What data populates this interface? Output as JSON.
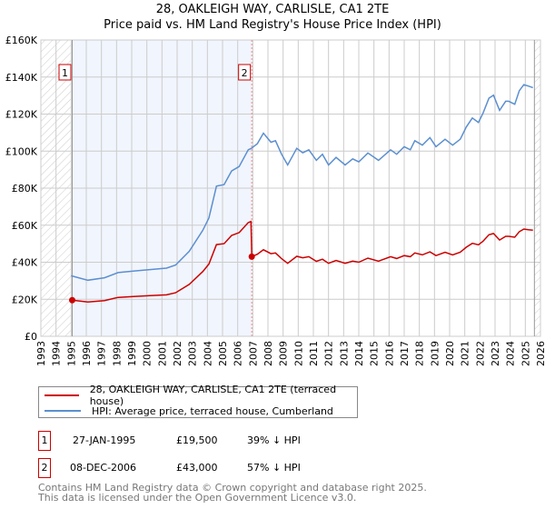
{
  "chart_data": {
    "type": "line",
    "title": "28, OAKLEIGH WAY, CARLISLE, CA1 2TE",
    "subtitle": "Price paid vs. HM Land Registry's House Price Index (HPI)",
    "xlabel": "",
    "ylabel": "",
    "xlim": [
      1993,
      2026
    ],
    "ylim": [
      0,
      160000
    ],
    "grid": true,
    "x_ticks": [
      "1993",
      "1994",
      "1995",
      "1996",
      "1997",
      "1998",
      "1999",
      "2000",
      "2001",
      "2002",
      "2003",
      "2004",
      "2005",
      "2006",
      "2007",
      "2008",
      "2009",
      "2010",
      "2011",
      "2012",
      "2013",
      "2014",
      "2015",
      "2016",
      "2017",
      "2018",
      "2019",
      "2020",
      "2021",
      "2022",
      "2023",
      "2024",
      "2025",
      "2026"
    ],
    "y_ticks": [
      {
        "value": 0,
        "label": "£0"
      },
      {
        "value": 20000,
        "label": "£20K"
      },
      {
        "value": 40000,
        "label": "£40K"
      },
      {
        "value": 60000,
        "label": "£60K"
      },
      {
        "value": 80000,
        "label": "£80K"
      },
      {
        "value": 100000,
        "label": "£100K"
      },
      {
        "value": 120000,
        "label": "£120K"
      },
      {
        "value": 140000,
        "label": "£140K"
      },
      {
        "value": 160000,
        "label": "£160K"
      }
    ],
    "shaded_range": [
      1995.07,
      2006.93
    ],
    "hatched_ranges": [
      [
        1993,
        1995.07
      ],
      [
        2025.6,
        2026
      ]
    ],
    "series": [
      {
        "name": "28, OAKLEIGH WAY, CARLISLE, CA1 2TE (terraced house)",
        "color": "#cc0000",
        "x": [
          1995.07,
          1996.1,
          1997.2,
          1998.1,
          1999.1,
          2000.2,
          2001.3,
          2001.9,
          2002.8,
          2003.7,
          2004.1,
          2004.6,
          2005.1,
          2005.6,
          2006.1,
          2006.7,
          2006.88,
          2006.93,
          2007.3,
          2007.7,
          2008.2,
          2008.5,
          2008.9,
          2009.3,
          2009.9,
          2010.3,
          2010.7,
          2011.2,
          2011.6,
          2012.0,
          2012.5,
          2013.1,
          2013.6,
          2014.0,
          2014.6,
          2015.3,
          2016.1,
          2016.5,
          2017.0,
          2017.4,
          2017.7,
          2018.2,
          2018.7,
          2019.1,
          2019.7,
          2020.2,
          2020.7,
          2021.1,
          2021.5,
          2021.9,
          2022.2,
          2022.6,
          2022.9,
          2023.3,
          2023.7,
          2023.9,
          2024.3,
          2024.6,
          2024.9,
          2025.2,
          2025.5
        ],
        "values": [
          19500,
          18500,
          19300,
          21000,
          21500,
          22000,
          22400,
          23500,
          28000,
          35000,
          39000,
          49500,
          50000,
          54500,
          56000,
          61400,
          62000,
          43000,
          44300,
          46700,
          44600,
          45000,
          41900,
          39400,
          43200,
          42400,
          43000,
          40500,
          41600,
          39400,
          41000,
          39400,
          40600,
          40000,
          42200,
          40600,
          43000,
          42000,
          43600,
          43000,
          45000,
          44000,
          45600,
          43600,
          45400,
          44000,
          45400,
          48100,
          50200,
          49400,
          51300,
          54800,
          55500,
          52000,
          54000,
          54000,
          53500,
          56500,
          57900,
          57500,
          57300
        ]
      },
      {
        "name": "HPI: Average price, terraced house, Cumberland",
        "color": "#5b8fd0",
        "x": [
          1995.0,
          1996.1,
          1997.2,
          1998.1,
          1999.1,
          2000.2,
          2001.3,
          2001.9,
          2002.8,
          2003.7,
          2004.1,
          2004.6,
          2005.1,
          2005.6,
          2006.1,
          2006.7,
          2006.9,
          2007.3,
          2007.7,
          2008.2,
          2008.5,
          2008.9,
          2009.3,
          2009.9,
          2010.3,
          2010.7,
          2011.2,
          2011.6,
          2012.0,
          2012.5,
          2013.1,
          2013.6,
          2014.0,
          2014.6,
          2015.3,
          2016.1,
          2016.5,
          2017.0,
          2017.4,
          2017.7,
          2018.2,
          2018.7,
          2019.1,
          2019.7,
          2020.2,
          2020.7,
          2021.1,
          2021.5,
          2021.9,
          2022.2,
          2022.6,
          2022.9,
          2023.3,
          2023.7,
          2023.9,
          2024.3,
          2024.6,
          2024.9,
          2025.2,
          2025.5
        ],
        "values": [
          32700,
          30300,
          31600,
          34400,
          35200,
          36000,
          36800,
          38500,
          45900,
          57300,
          63900,
          81100,
          81900,
          89300,
          91700,
          100700,
          101500,
          104000,
          109700,
          104800,
          105600,
          98300,
          92500,
          101500,
          99100,
          100700,
          95000,
          98300,
          92500,
          96600,
          92500,
          95800,
          94200,
          99000,
          95000,
          100700,
          98300,
          102400,
          100700,
          105600,
          103200,
          107300,
          102400,
          106400,
          103200,
          106400,
          113000,
          117900,
          115500,
          120400,
          128600,
          130200,
          122000,
          126900,
          126900,
          125300,
          132600,
          135900,
          135100,
          134300
        ]
      }
    ],
    "annotations": [
      {
        "label": "1",
        "x": 1995.07,
        "value": 19500
      },
      {
        "label": "2",
        "x": 2006.93,
        "value": 43000
      }
    ]
  },
  "legend": {
    "items": [
      {
        "label": "28, OAKLEIGH WAY, CARLISLE, CA1 2TE (terraced house)",
        "color": "#cc0000"
      },
      {
        "label": "HPI: Average price, terraced house, Cumberland",
        "color": "#5b8fd0"
      }
    ]
  },
  "sales": [
    {
      "num": "1",
      "date": "27-JAN-1995",
      "price": "£19,500",
      "hpi": "39% ↓ HPI"
    },
    {
      "num": "2",
      "date": "08-DEC-2006",
      "price": "£43,000",
      "hpi": "57% ↓ HPI"
    }
  ],
  "footer": {
    "line1": "Contains HM Land Registry data © Crown copyright and database right 2025.",
    "line2": "This data is licensed under the Open Government Licence v3.0."
  }
}
